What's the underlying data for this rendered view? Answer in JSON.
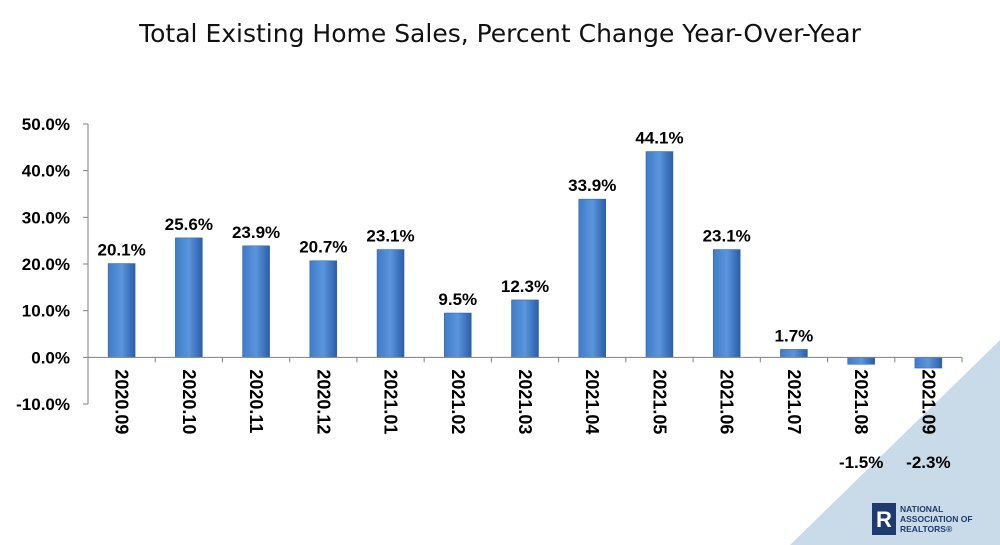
{
  "chart_data": {
    "type": "bar",
    "title": "Total Existing Home Sales, Percent Change Year-Over-Year",
    "categories": [
      "2020.09",
      "2020.10",
      "2020.11",
      "2020.12",
      "2021.01",
      "2021.02",
      "2021.03",
      "2021.04",
      "2021.05",
      "2021.06",
      "2021.07",
      "2021.08",
      "2021.09"
    ],
    "values": [
      20.1,
      25.6,
      23.9,
      20.7,
      23.1,
      9.5,
      12.3,
      33.9,
      44.1,
      23.1,
      1.7,
      -1.5,
      -2.3
    ],
    "data_labels": [
      "20.1%",
      "25.6%",
      "23.9%",
      "20.7%",
      "23.1%",
      "9.5%",
      "12.3%",
      "33.9%",
      "44.1%",
      "23.1%",
      "1.7%",
      "-1.5%",
      "-2.3%"
    ],
    "yticks": [
      -10,
      0,
      10,
      20,
      30,
      40,
      50
    ],
    "ytick_labels": [
      "-10.0%",
      "0.0%",
      "10.0%",
      "20.0%",
      "30.0%",
      "40.0%",
      "50.0%"
    ],
    "ylim": [
      -10,
      50
    ],
    "xlabel": "",
    "ylabel": "",
    "grid": false,
    "colors": {
      "bar_top": "#5b95dc",
      "bar_bottom": "#2a5ea8",
      "accent_triangle": "#c9dbe8",
      "logo": "#1f3a6e"
    }
  },
  "logo": {
    "mark": "R",
    "line1": "NATIONAL",
    "line2": "ASSOCIATION OF",
    "line3": "REALTORS®"
  }
}
